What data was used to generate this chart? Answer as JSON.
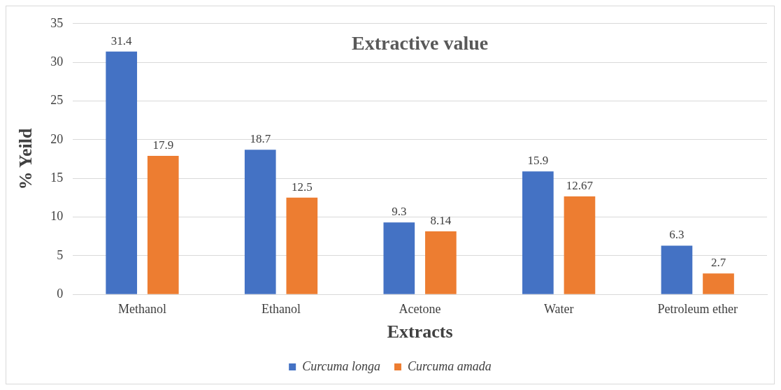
{
  "chart_data": {
    "type": "bar",
    "title": "Extractive value",
    "xlabel": "Extracts",
    "ylabel": "% Yeild",
    "categories": [
      "Methanol",
      "Ethanol",
      "Acetone",
      "Water",
      "Petroleum ether"
    ],
    "series": [
      {
        "name": "Curcuma longa",
        "color": "#4472c4",
        "values": [
          31.4,
          18.7,
          9.3,
          15.9,
          6.3
        ]
      },
      {
        "name": "Curcuma amada",
        "color": "#ed7d31",
        "values": [
          17.9,
          12.5,
          8.14,
          12.67,
          2.7
        ]
      }
    ],
    "ylim": [
      0,
      35
    ],
    "yticks": [
      0,
      5,
      10,
      15,
      20,
      25,
      30,
      35
    ],
    "grid": "y",
    "legend": "bottom",
    "data_labels": true
  }
}
